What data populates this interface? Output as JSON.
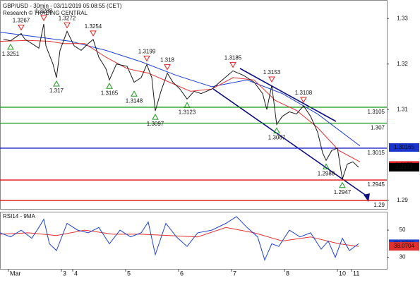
{
  "chart_data": [
    {
      "type": "line",
      "title": "GBP/USD - 30min - 03/11/2019 05:08:55 (CET)",
      "subtitle": "Research © TRADING CENTRAL",
      "xlim": [
        0,
        548
      ],
      "ylim": [
        1.2883,
        1.3333
      ],
      "yticks": [
        1.29,
        1.31,
        1.32,
        1.33
      ],
      "series": [
        {
          "color": "#1a1a1a",
          "x": [
            5,
            15,
            25,
            30,
            35,
            45,
            55,
            62,
            65,
            75,
            80,
            85,
            95,
            105,
            115,
            125,
            132,
            140,
            150,
            155,
            165,
            180,
            190,
            200,
            208,
            215,
            220,
            228,
            237,
            245,
            255,
            265,
            275,
            285,
            300,
            315,
            330,
            345,
            360,
            372,
            378,
            385,
            392,
            400,
            410,
            420,
            430,
            440,
            450,
            457,
            462,
            470,
            478,
            485,
            492,
            500,
            508
          ],
          "values": [
            1.3255,
            1.3251,
            1.3262,
            1.3267,
            1.3255,
            1.3245,
            1.3235,
            1.3288,
            1.324,
            1.32,
            1.317,
            1.323,
            1.3272,
            1.324,
            1.323,
            1.3245,
            1.3254,
            1.3215,
            1.319,
            1.3165,
            1.32,
            1.3195,
            1.316,
            1.317,
            1.3199,
            1.317,
            1.3097,
            1.314,
            1.318,
            1.316,
            1.3145,
            1.3123,
            1.314,
            1.3135,
            1.3145,
            1.3165,
            1.3185,
            1.3175,
            1.316,
            1.3135,
            1.31,
            1.3153,
            1.3067,
            1.3085,
            1.3095,
            1.309,
            1.3108,
            1.3085,
            1.305,
            1.3005,
            1.2988,
            1.301,
            1.3015,
            1.2947,
            1.298,
            1.2985,
            1.2973
          ]
        },
        {
          "color": "#e03030",
          "x": [
            0,
            40,
            70,
            90,
            120,
            150,
            180,
            210,
            240,
            270,
            300,
            330,
            360,
            390,
            420,
            450,
            480,
            510
          ],
          "values": [
            1.325,
            1.3252,
            1.325,
            1.3245,
            1.3245,
            1.3215,
            1.319,
            1.318,
            1.316,
            1.314,
            1.3145,
            1.317,
            1.3165,
            1.312,
            1.3098,
            1.306,
            1.301,
            1.2985
          ]
        },
        {
          "color": "#2040d0",
          "x": [
            0,
            50,
            100,
            150,
            200,
            250,
            300,
            350,
            400,
            450,
            480,
            510
          ],
          "values": [
            1.327,
            1.326,
            1.325,
            1.323,
            1.3205,
            1.3175,
            1.315,
            1.3165,
            1.3135,
            1.309,
            1.3055,
            1.302
          ]
        }
      ],
      "levels": [
        {
          "value": 1.3105,
          "color": "#1a9a1a"
        },
        {
          "value": 1.307,
          "color": "#1a9a1a"
        },
        {
          "value": 1.3015,
          "color": "#1a1acc"
        },
        {
          "value": 1.2945,
          "color": "#e01010"
        },
        {
          "value": 1.29,
          "color": "#e01010"
        }
      ],
      "markers": [
        {
          "value": 1.30165,
          "color": "#1a33cc"
        },
        {
          "value": 1.2977,
          "color": "#e02020"
        },
        {
          "value": 1.2973,
          "color": "#000000"
        }
      ],
      "annotations": [
        {
          "x": 30,
          "value": 1.3267,
          "kind": "high"
        },
        {
          "x": 15,
          "value": 1.3251,
          "kind": "low"
        },
        {
          "x": 62,
          "value": 1.3288,
          "kind": "high"
        },
        {
          "x": 95,
          "value": 1.3272,
          "kind": "high"
        },
        {
          "x": 132,
          "value": 1.3254,
          "kind": "high"
        },
        {
          "x": 80,
          "value": 1.317,
          "kind": "low"
        },
        {
          "x": 208,
          "value": 1.3199,
          "kind": "high"
        },
        {
          "x": 155,
          "value": 1.3165,
          "kind": "low"
        },
        {
          "x": 237,
          "value": 1.318,
          "kind": "high"
        },
        {
          "x": 190,
          "value": 1.3148,
          "kind": "low"
        },
        {
          "x": 220,
          "value": 1.3097,
          "kind": "low"
        },
        {
          "x": 265,
          "value": 1.3123,
          "kind": "low"
        },
        {
          "x": 330,
          "value": 1.3185,
          "kind": "high"
        },
        {
          "x": 385,
          "value": 1.3153,
          "kind": "high"
        },
        {
          "x": 392,
          "value": 1.3067,
          "kind": "low"
        },
        {
          "x": 430,
          "value": 1.3108,
          "kind": "high"
        },
        {
          "x": 462,
          "value": 1.2988,
          "kind": "low"
        },
        {
          "x": 485,
          "value": 1.2947,
          "kind": "low"
        }
      ]
    },
    {
      "type": "line",
      "title": "RSI14 - 9MA",
      "xlim": [
        0,
        548
      ],
      "ylim": [
        22,
        62
      ],
      "yticks": [
        30,
        50
      ],
      "xticks": [
        {
          "value": 12,
          "label": "Mar"
        },
        {
          "value": 87,
          "label": "3"
        },
        {
          "value": 103,
          "label": "4"
        },
        {
          "value": 178,
          "label": "5"
        },
        {
          "value": 253,
          "label": "6"
        },
        {
          "value": 328,
          "label": "7"
        },
        {
          "value": 403,
          "label": "8"
        },
        {
          "value": 478,
          "label": "10"
        },
        {
          "value": 498,
          "label": "11"
        }
      ],
      "series": [
        {
          "color": "#2040d0",
          "x": [
            0,
            15,
            30,
            45,
            55,
            62,
            70,
            80,
            95,
            110,
            125,
            140,
            155,
            170,
            185,
            200,
            210,
            220,
            235,
            250,
            265,
            280,
            300,
            320,
            335,
            350,
            365,
            375,
            385,
            395,
            410,
            425,
            440,
            455,
            465,
            475,
            485,
            495,
            508
          ],
          "values": [
            48,
            45,
            50,
            44,
            52,
            58,
            40,
            35,
            55,
            50,
            48,
            52,
            40,
            50,
            45,
            48,
            56,
            32,
            55,
            45,
            38,
            48,
            50,
            55,
            60,
            52,
            45,
            28,
            40,
            38,
            50,
            45,
            48,
            36,
            42,
            30,
            44,
            35,
            39.9782
          ]
        },
        {
          "color": "#e03030",
          "x": [
            0,
            40,
            80,
            120,
            160,
            200,
            240,
            280,
            320,
            360,
            400,
            440,
            480,
            508
          ],
          "values": [
            47,
            48,
            46,
            50,
            47,
            47,
            46,
            45,
            52,
            48,
            42,
            45,
            40,
            38.0704
          ]
        }
      ],
      "tags": [
        0,
        1
      ]
    }
  ]
}
